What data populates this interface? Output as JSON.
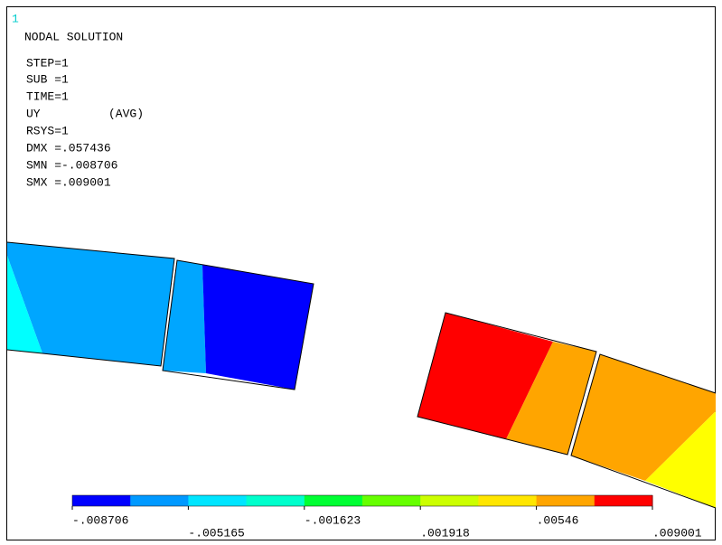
{
  "window_number": "1",
  "title": "NODAL SOLUTION",
  "info": {
    "step": "STEP=1",
    "sub": "SUB =1",
    "time": "TIME=1",
    "item": "UY",
    "avg": "(AVG)",
    "rsys": "RSYS=1",
    "dmx": "DMX =.057436",
    "smn": "SMN =-.008706",
    "smx": "SMX =.009001"
  },
  "legend": {
    "colors": [
      "#0000ff",
      "#0099ff",
      "#00e5ff",
      "#00ffcc",
      "#00ff33",
      "#66ff00",
      "#ccff00",
      "#ffe600",
      "#ffa500",
      "#ff0000"
    ],
    "labels": [
      "-.008706",
      "-.005165",
      "-.001623",
      ".001918",
      ".00546",
      ".009001"
    ]
  }
}
